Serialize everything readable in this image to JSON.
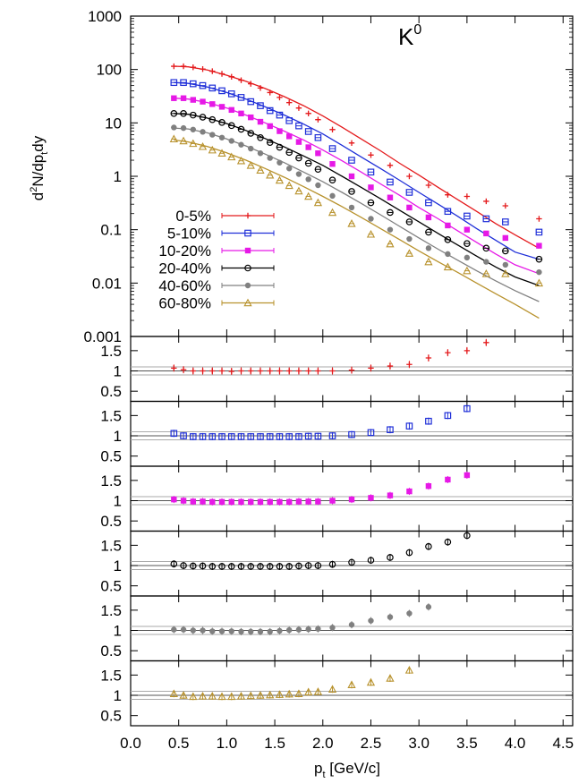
{
  "chart_data": {
    "type": "scatter",
    "annotation_main": "K",
    "annotation_sup": "0",
    "ylabel_main": "d",
    "ylabel_sup": "2",
    "ylabel_mid": "N/dp",
    "ylabel_sub": "t",
    "ylabel_end": "dy",
    "xlabel_main": "p",
    "xlabel_sub": "t",
    "xlabel_end": " [GeV/c]",
    "yscale": "log",
    "ylim": [
      0.001,
      1000
    ],
    "xlim": [
      0.0,
      4.6
    ],
    "main_yticks": [
      "1000",
      "100",
      "10",
      "1",
      "0.1",
      "0.01",
      "0.001"
    ],
    "xticks": [
      "0.0",
      "0.5",
      "1.0",
      "1.5",
      "2.0",
      "2.5",
      "3.0",
      "3.5",
      "4.0",
      "4.5"
    ],
    "ratio_yticks": [
      "1.5",
      "1",
      "0.5"
    ],
    "ratio_ylim": [
      0.25,
      1.85
    ],
    "ratio_band": [
      0.9,
      1.1
    ],
    "legend_position": "bottom-left",
    "series": [
      {
        "name": "0-5%",
        "color": "#e41a1c",
        "marker": "plus",
        "x": [
          0.45,
          0.55,
          0.65,
          0.75,
          0.85,
          0.95,
          1.05,
          1.15,
          1.25,
          1.35,
          1.45,
          1.55,
          1.65,
          1.75,
          1.85,
          1.95,
          2.1,
          2.3,
          2.5,
          2.7,
          2.9,
          3.1,
          3.3,
          3.5,
          3.7,
          3.9,
          4.25
        ],
        "y": [
          115,
          115,
          110,
          102,
          93,
          83,
          73,
          63,
          54,
          45,
          37,
          30,
          24,
          19,
          15,
          11.5,
          7.5,
          4.2,
          2.5,
          1.6,
          1.0,
          0.68,
          0.45,
          0.42,
          0.34,
          0.28,
          0.16
        ],
        "curve_x": [
          0.45,
          0.6,
          0.8,
          1.0,
          1.2,
          1.4,
          1.6,
          1.8,
          2.0,
          2.2,
          2.4,
          2.6,
          2.8,
          3.0,
          3.2,
          3.4,
          3.6,
          3.8,
          4.0,
          4.25
        ],
        "curve_y": [
          115,
          112,
          98,
          78,
          60,
          44,
          31,
          21,
          13.5,
          8.3,
          5.0,
          3.0,
          1.75,
          1.05,
          0.62,
          0.37,
          0.22,
          0.13,
          0.08,
          0.045
        ],
        "ratio_x": [
          0.45,
          0.55,
          0.65,
          0.75,
          0.85,
          0.95,
          1.05,
          1.15,
          1.25,
          1.35,
          1.45,
          1.55,
          1.65,
          1.75,
          1.85,
          1.95,
          2.1,
          2.3,
          2.5,
          2.7,
          2.9,
          3.1,
          3.3,
          3.5,
          3.7
        ],
        "ratio_y": [
          1.07,
          1.03,
          1.0,
          1.0,
          1.0,
          1.0,
          0.99,
          1.0,
          1.0,
          1.0,
          1.0,
          1.0,
          1.0,
          1.0,
          1.0,
          1.0,
          1.0,
          1.02,
          1.07,
          1.12,
          1.16,
          1.32,
          1.45,
          1.5,
          1.7
        ]
      },
      {
        "name": "5-10%",
        "color": "#1f2fd8",
        "marker": "open-square",
        "x": [
          0.45,
          0.55,
          0.65,
          0.75,
          0.85,
          0.95,
          1.05,
          1.15,
          1.25,
          1.35,
          1.45,
          1.55,
          1.65,
          1.75,
          1.85,
          1.95,
          2.1,
          2.3,
          2.5,
          2.7,
          2.9,
          3.1,
          3.3,
          3.5,
          3.7,
          3.9,
          4.25
        ],
        "y": [
          57,
          57,
          54,
          50,
          45,
          40,
          35,
          30,
          25,
          21,
          17,
          14,
          11,
          8.8,
          6.9,
          5.3,
          3.3,
          2.0,
          1.2,
          0.78,
          0.5,
          0.32,
          0.22,
          0.18,
          0.16,
          0.14,
          0.09
        ],
        "curve_x": [
          0.45,
          0.6,
          0.8,
          1.0,
          1.2,
          1.4,
          1.6,
          1.8,
          2.0,
          2.2,
          2.4,
          2.6,
          2.8,
          3.0,
          3.2,
          3.4,
          3.6,
          3.8,
          4.0,
          4.25
        ],
        "curve_y": [
          57,
          55,
          47,
          37,
          28,
          20,
          14,
          9.5,
          6.2,
          3.8,
          2.3,
          1.4,
          0.84,
          0.5,
          0.3,
          0.18,
          0.105,
          0.063,
          0.038,
          0.028
        ],
        "ratio_x": [
          0.45,
          0.55,
          0.65,
          0.75,
          0.85,
          0.95,
          1.05,
          1.15,
          1.25,
          1.35,
          1.45,
          1.55,
          1.65,
          1.75,
          1.85,
          1.95,
          2.1,
          2.3,
          2.5,
          2.7,
          2.9,
          3.1,
          3.3,
          3.5
        ],
        "ratio_y": [
          1.06,
          1.0,
          0.98,
          0.98,
          0.98,
          0.98,
          0.98,
          0.98,
          0.98,
          0.98,
          0.98,
          0.98,
          0.98,
          0.98,
          0.99,
          0.99,
          1.0,
          1.03,
          1.08,
          1.15,
          1.24,
          1.36,
          1.5,
          1.67
        ]
      },
      {
        "name": "10-20%",
        "color": "#e619e6",
        "marker": "filled-square",
        "x": [
          0.45,
          0.55,
          0.65,
          0.75,
          0.85,
          0.95,
          1.05,
          1.15,
          1.25,
          1.35,
          1.45,
          1.55,
          1.65,
          1.75,
          1.85,
          1.95,
          2.1,
          2.3,
          2.5,
          2.7,
          2.9,
          3.1,
          3.3,
          3.5,
          3.7,
          3.9,
          4.25
        ],
        "y": [
          29,
          29,
          27,
          25,
          22.5,
          20,
          17.5,
          15,
          12.7,
          10.5,
          8.7,
          7.0,
          5.6,
          4.4,
          3.5,
          2.7,
          1.7,
          1.0,
          0.62,
          0.4,
          0.26,
          0.17,
          0.12,
          0.1,
          0.085,
          0.07,
          0.05
        ],
        "curve_x": [
          0.45,
          0.6,
          0.8,
          1.0,
          1.2,
          1.4,
          1.6,
          1.8,
          2.0,
          2.2,
          2.4,
          2.6,
          2.8,
          3.0,
          3.2,
          3.4,
          3.6,
          3.8,
          4.0,
          4.25
        ],
        "curve_y": [
          29,
          28,
          24,
          19,
          14,
          10,
          7.0,
          4.8,
          3.1,
          1.95,
          1.2,
          0.72,
          0.44,
          0.26,
          0.16,
          0.096,
          0.058,
          0.035,
          0.022,
          0.015
        ],
        "ratio_x": [
          0.45,
          0.55,
          0.65,
          0.75,
          0.85,
          0.95,
          1.05,
          1.15,
          1.25,
          1.35,
          1.45,
          1.55,
          1.65,
          1.75,
          1.85,
          1.95,
          2.1,
          2.3,
          2.5,
          2.7,
          2.9,
          3.1,
          3.3,
          3.5
        ],
        "ratio_y": [
          1.03,
          1.0,
          0.98,
          0.98,
          0.97,
          0.97,
          0.97,
          0.97,
          0.97,
          0.97,
          0.97,
          0.97,
          0.97,
          0.98,
          0.98,
          0.98,
          1.0,
          1.03,
          1.07,
          1.13,
          1.23,
          1.36,
          1.52,
          1.63
        ]
      },
      {
        "name": "20-40%",
        "color": "#000000",
        "marker": "open-circle",
        "x": [
          0.45,
          0.55,
          0.65,
          0.75,
          0.85,
          0.95,
          1.05,
          1.15,
          1.25,
          1.35,
          1.45,
          1.55,
          1.65,
          1.75,
          1.85,
          1.95,
          2.1,
          2.3,
          2.5,
          2.7,
          2.9,
          3.1,
          3.3,
          3.5,
          3.7,
          3.9,
          4.25
        ],
        "y": [
          15,
          15,
          14,
          12.8,
          11.5,
          10.2,
          8.9,
          7.6,
          6.4,
          5.3,
          4.3,
          3.5,
          2.8,
          2.2,
          1.75,
          1.35,
          0.85,
          0.52,
          0.32,
          0.21,
          0.14,
          0.09,
          0.065,
          0.055,
          0.045,
          0.04,
          0.028
        ],
        "curve_x": [
          0.45,
          0.6,
          0.8,
          1.0,
          1.2,
          1.4,
          1.6,
          1.8,
          2.0,
          2.2,
          2.4,
          2.6,
          2.8,
          3.0,
          3.2,
          3.4,
          3.6,
          3.8,
          4.0,
          4.25
        ],
        "curve_y": [
          15,
          14.5,
          12.3,
          9.7,
          7.2,
          5.1,
          3.55,
          2.4,
          1.6,
          1.0,
          0.62,
          0.38,
          0.23,
          0.14,
          0.085,
          0.052,
          0.032,
          0.02,
          0.013,
          0.009
        ],
        "ratio_x": [
          0.45,
          0.55,
          0.65,
          0.75,
          0.85,
          0.95,
          1.05,
          1.15,
          1.25,
          1.35,
          1.45,
          1.55,
          1.65,
          1.75,
          1.85,
          1.95,
          2.1,
          2.3,
          2.5,
          2.7,
          2.9,
          3.1,
          3.3,
          3.5
        ],
        "ratio_y": [
          1.04,
          1.0,
          0.99,
          0.99,
          0.98,
          0.98,
          0.98,
          0.98,
          0.98,
          0.98,
          0.98,
          0.98,
          0.98,
          0.99,
          1.0,
          1.0,
          1.03,
          1.08,
          1.13,
          1.2,
          1.32,
          1.47,
          1.58,
          1.74
        ]
      },
      {
        "name": "40-60%",
        "color": "#808080",
        "marker": "filled-circle",
        "x": [
          0.45,
          0.55,
          0.65,
          0.75,
          0.85,
          0.95,
          1.05,
          1.15,
          1.25,
          1.35,
          1.45,
          1.55,
          1.65,
          1.75,
          1.85,
          1.95,
          2.1,
          2.3,
          2.5,
          2.7,
          2.9,
          3.1,
          3.3,
          3.5,
          3.7,
          3.9,
          4.25
        ],
        "y": [
          8.2,
          8.0,
          7.5,
          6.8,
          6.0,
          5.3,
          4.6,
          3.9,
          3.3,
          2.7,
          2.2,
          1.8,
          1.4,
          1.1,
          0.88,
          0.68,
          0.43,
          0.26,
          0.16,
          0.1,
          0.067,
          0.045,
          0.035,
          0.03,
          0.025,
          0.022,
          0.016
        ],
        "curve_x": [
          0.45,
          0.6,
          0.8,
          1.0,
          1.2,
          1.4,
          1.6,
          1.8,
          2.0,
          2.2,
          2.4,
          2.6,
          2.8,
          3.0,
          3.2,
          3.4,
          3.6,
          3.8,
          4.0,
          4.25
        ],
        "curve_y": [
          8.0,
          7.7,
          6.5,
          5.0,
          3.7,
          2.6,
          1.8,
          1.2,
          0.79,
          0.5,
          0.31,
          0.19,
          0.115,
          0.07,
          0.043,
          0.027,
          0.017,
          0.011,
          0.0072,
          0.0045
        ],
        "ratio_x": [
          0.45,
          0.55,
          0.65,
          0.75,
          0.85,
          0.95,
          1.05,
          1.15,
          1.25,
          1.35,
          1.45,
          1.55,
          1.65,
          1.75,
          1.85,
          1.95,
          2.1,
          2.3,
          2.5,
          2.7,
          2.9,
          3.1
        ],
        "ratio_y": [
          1.02,
          1.02,
          1.0,
          1.0,
          0.98,
          0.98,
          0.98,
          0.97,
          0.97,
          0.97,
          0.97,
          0.99,
          1.01,
          1.02,
          1.03,
          1.04,
          1.07,
          1.14,
          1.24,
          1.33,
          1.42,
          1.58
        ]
      },
      {
        "name": "60-80%",
        "color": "#b8922d",
        "marker": "open-triangle",
        "x": [
          0.45,
          0.55,
          0.65,
          0.75,
          0.85,
          0.95,
          1.05,
          1.15,
          1.25,
          1.35,
          1.45,
          1.55,
          1.65,
          1.75,
          1.85,
          1.95,
          2.1,
          2.3,
          2.5,
          2.7,
          2.9,
          3.1,
          3.3,
          3.5,
          3.7,
          3.9,
          4.25
        ],
        "y": [
          5.0,
          4.6,
          4.1,
          3.6,
          3.1,
          2.7,
          2.3,
          1.95,
          1.6,
          1.3,
          1.05,
          0.84,
          0.67,
          0.53,
          0.42,
          0.32,
          0.21,
          0.13,
          0.082,
          0.054,
          0.036,
          0.025,
          0.02,
          0.017,
          0.015,
          0.015,
          0.01
        ],
        "curve_x": [
          0.45,
          0.6,
          0.8,
          1.0,
          1.2,
          1.4,
          1.6,
          1.8,
          2.0,
          2.2,
          2.4,
          2.6,
          2.8,
          3.0,
          3.2,
          3.4,
          3.6,
          3.8,
          4.0,
          4.25
        ],
        "curve_y": [
          4.8,
          4.4,
          3.6,
          2.75,
          2.0,
          1.4,
          0.96,
          0.64,
          0.42,
          0.27,
          0.17,
          0.105,
          0.065,
          0.04,
          0.025,
          0.016,
          0.01,
          0.0063,
          0.004,
          0.0022
        ],
        "ratio_x": [
          0.45,
          0.55,
          0.65,
          0.75,
          0.85,
          0.95,
          1.05,
          1.15,
          1.25,
          1.35,
          1.45,
          1.55,
          1.65,
          1.75,
          1.85,
          1.95,
          2.1,
          2.3,
          2.5,
          2.7,
          2.9
        ],
        "ratio_y": [
          1.04,
          1.0,
          0.97,
          0.98,
          0.98,
          0.97,
          0.97,
          0.98,
          0.99,
          1.0,
          1.01,
          1.02,
          1.03,
          1.04,
          1.08,
          1.09,
          1.15,
          1.26,
          1.32,
          1.42,
          1.62
        ]
      }
    ]
  }
}
